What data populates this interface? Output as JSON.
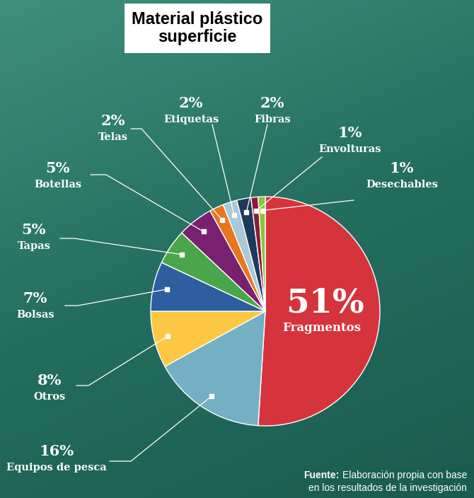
{
  "chart_data": {
    "type": "pie",
    "title": "Material plástico superficie",
    "categories": [
      "Fragmentos",
      "Equipos de pesca",
      "Otros",
      "Bolsas",
      "Tapas",
      "Botellas",
      "Telas",
      "Etiquetas",
      "Fibras",
      "Envolturas",
      "Desechables"
    ],
    "values": [
      51,
      16,
      8,
      7,
      5,
      5,
      2,
      2,
      2,
      1,
      1
    ],
    "value_labels": [
      "51%",
      "16%",
      "8%",
      "7%",
      "5%",
      "5%",
      "2%",
      "2%",
      "2%",
      "1%",
      "1%"
    ],
    "colors": [
      "#d6343c",
      "#74afc4",
      "#fcc843",
      "#2e5e9f",
      "#4aa64a",
      "#7a2070",
      "#e8761e",
      "#a9c8d8",
      "#1e3a5a",
      "#8b1a3a",
      "#8cc43c"
    ],
    "data_labels": true,
    "source": {
      "label": "Fuente:",
      "lines": [
        "Elaboración propia con base",
        "en los resultados de la investigación"
      ]
    }
  }
}
